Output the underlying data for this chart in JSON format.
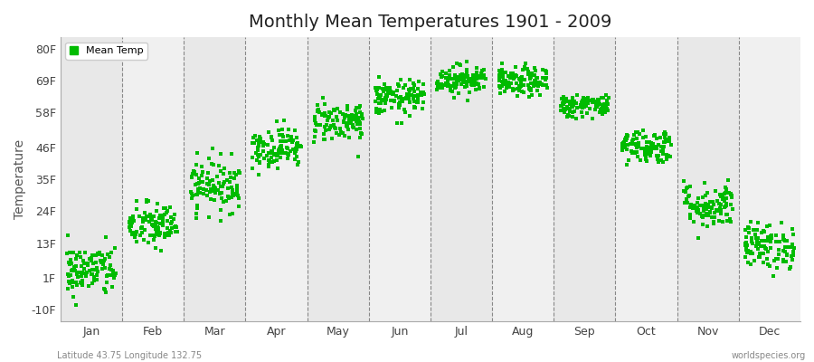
{
  "title": "Monthly Mean Temperatures 1901 - 2009",
  "ylabel": "Temperature",
  "xlabel_bottom_left": "Latitude 43.75 Longitude 132.75",
  "xlabel_bottom_right": "worldspecies.org",
  "legend_label": "Mean Temp",
  "dot_color": "#00bb00",
  "bg_color_even": "#e8e8e8",
  "bg_color_odd": "#f0f0f0",
  "outer_bg_color": "#ffffff",
  "ytick_labels": [
    "-10F",
    "1F",
    "13F",
    "24F",
    "35F",
    "46F",
    "58F",
    "69F",
    "80F"
  ],
  "ytick_values": [
    -10,
    1,
    13,
    24,
    35,
    46,
    58,
    69,
    80
  ],
  "ylim": [
    -14,
    84
  ],
  "months": [
    "Jan",
    "Feb",
    "Mar",
    "Apr",
    "May",
    "Jun",
    "Jul",
    "Aug",
    "Sep",
    "Oct",
    "Nov",
    "Dec"
  ],
  "month_centers": [
    0.5,
    1.5,
    2.5,
    3.5,
    4.5,
    5.5,
    6.5,
    7.5,
    8.5,
    9.5,
    10.5,
    11.5
  ],
  "month_boundaries": [
    0,
    1,
    2,
    3,
    4,
    5,
    6,
    7,
    8,
    9,
    10,
    11,
    12
  ],
  "xlim": [
    0,
    12
  ],
  "mean_temps_f": {
    "Jan": 3.5,
    "Feb": 19.0,
    "Mar": 33.0,
    "Apr": 46.0,
    "May": 55.0,
    "Jun": 63.0,
    "Jul": 69.5,
    "Aug": 68.5,
    "Sep": 60.5,
    "Oct": 46.5,
    "Nov": 26.0,
    "Dec": 12.0
  },
  "spread_f": {
    "Jan": 4.5,
    "Feb": 4.0,
    "Mar": 4.5,
    "Apr": 3.5,
    "May": 3.5,
    "Jun": 3.0,
    "Jul": 2.5,
    "Aug": 2.5,
    "Sep": 2.0,
    "Oct": 3.0,
    "Nov": 4.0,
    "Dec": 4.0
  },
  "n_points": 109,
  "seed": 42,
  "marker_size": 5,
  "spread_x": 0.4
}
